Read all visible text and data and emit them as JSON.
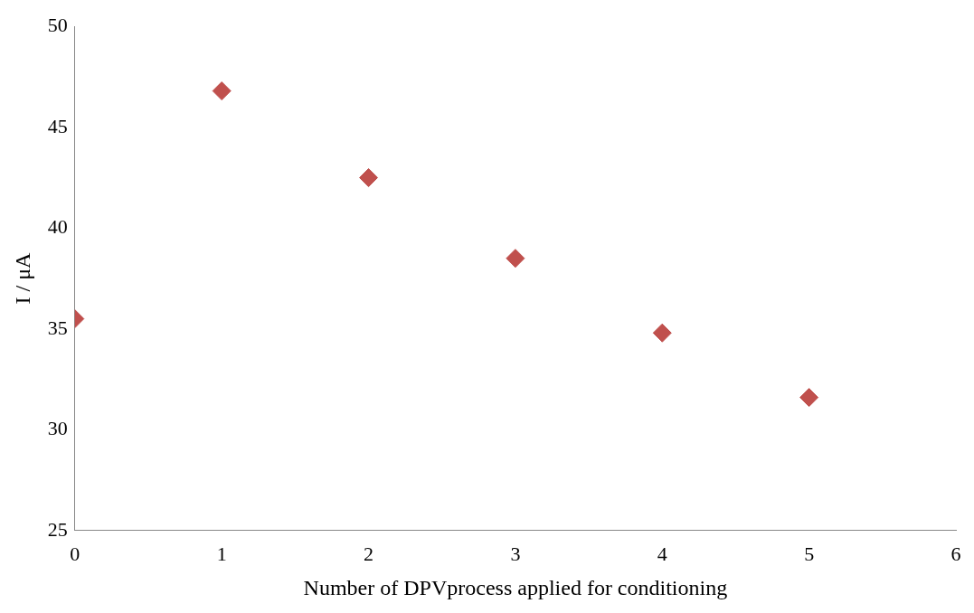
{
  "chart_data": {
    "type": "scatter",
    "xlabel": "Number of DPVprocess applied for conditioning",
    "ylabel": "I / μA",
    "x": [
      0,
      1,
      2,
      3,
      4,
      5
    ],
    "series": [
      {
        "color": "#c0504d",
        "values": [
          35.5,
          46.8,
          42.5,
          38.5,
          34.8,
          31.6
        ]
      }
    ],
    "xlim": [
      0,
      6
    ],
    "xticks": [
      0,
      1,
      2,
      3,
      4,
      5,
      6
    ],
    "ylim": [
      25,
      50
    ],
    "yticks": [
      25,
      30,
      35,
      40,
      45,
      50
    ],
    "grid": false,
    "legend": false,
    "marker": "diamond"
  }
}
